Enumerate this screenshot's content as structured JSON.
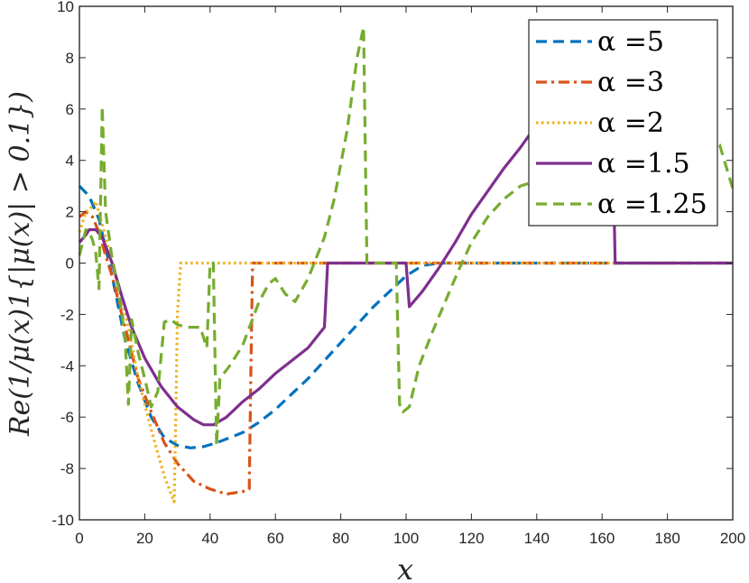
{
  "chart_data": {
    "type": "line",
    "title": "",
    "xlabel": "x",
    "ylabel": "Re(1/μ(x)1{|μ(x)| > 0.1})",
    "xlim": [
      0,
      200
    ],
    "ylim": [
      -10,
      10
    ],
    "xticks": [
      0,
      20,
      40,
      60,
      80,
      100,
      120,
      140,
      160,
      180,
      200
    ],
    "yticks": [
      -10,
      -8,
      -6,
      -4,
      -2,
      0,
      2,
      4,
      6,
      8,
      10
    ],
    "grid": false,
    "legend_position": "top-right",
    "series": [
      {
        "name": "α =5",
        "color": "#0072BD",
        "dash": "dashed",
        "points": [
          [
            0,
            3
          ],
          [
            3,
            2.6
          ],
          [
            6,
            1.7
          ],
          [
            10,
            -0.5
          ],
          [
            14,
            -3
          ],
          [
            18,
            -4.7
          ],
          [
            22,
            -6
          ],
          [
            26,
            -6.8
          ],
          [
            30,
            -7.1
          ],
          [
            34,
            -7.2
          ],
          [
            38,
            -7.15
          ],
          [
            42,
            -7
          ],
          [
            46,
            -6.8
          ],
          [
            50,
            -6.6
          ],
          [
            55,
            -6.2
          ],
          [
            60,
            -5.7
          ],
          [
            65,
            -5.1
          ],
          [
            70,
            -4.5
          ],
          [
            75,
            -3.8
          ],
          [
            80,
            -3.1
          ],
          [
            85,
            -2.4
          ],
          [
            90,
            -1.7
          ],
          [
            95,
            -1.1
          ],
          [
            100,
            -0.5
          ],
          [
            105,
            -0.1
          ],
          [
            110,
            0
          ],
          [
            200,
            0
          ]
        ]
      },
      {
        "name": "α =3",
        "color": "#D95319",
        "dash": "dashdot",
        "points": [
          [
            0,
            1.8
          ],
          [
            2,
            2
          ],
          [
            4,
            1.8
          ],
          [
            6,
            1.2
          ],
          [
            8,
            0.3
          ],
          [
            10,
            -0.5
          ],
          [
            12,
            -1.5
          ],
          [
            15,
            -3
          ],
          [
            18,
            -4.5
          ],
          [
            22,
            -5.8
          ],
          [
            26,
            -7
          ],
          [
            30,
            -7.8
          ],
          [
            35,
            -8.5
          ],
          [
            40,
            -8.8
          ],
          [
            45,
            -9
          ],
          [
            50,
            -8.9
          ],
          [
            52,
            -8.8
          ],
          [
            52.5,
            -4
          ],
          [
            53,
            0
          ],
          [
            200,
            0
          ]
        ]
      },
      {
        "name": "α =2",
        "color": "#EDB120",
        "dash": "dotted",
        "points": [
          [
            0,
            1.2
          ],
          [
            2,
            2
          ],
          [
            4,
            2.2
          ],
          [
            5,
            2.4
          ],
          [
            7,
            1.5
          ],
          [
            9,
            0.5
          ],
          [
            11,
            -0.5
          ],
          [
            13,
            -1.5
          ],
          [
            15,
            -2.5
          ],
          [
            18,
            -4.5
          ],
          [
            22,
            -6.5
          ],
          [
            26,
            -8.3
          ],
          [
            29,
            -9.3
          ],
          [
            29.5,
            -6
          ],
          [
            30,
            -2
          ],
          [
            31,
            0
          ],
          [
            200,
            0
          ]
        ]
      },
      {
        "name": "α =1.5",
        "color": "#7E2F8E",
        "dash": "solid",
        "points": [
          [
            0,
            0.8
          ],
          [
            2,
            1.1
          ],
          [
            3,
            1.3
          ],
          [
            5,
            1.3
          ],
          [
            7,
            1
          ],
          [
            10,
            0
          ],
          [
            13,
            -1.3
          ],
          [
            16,
            -2.5
          ],
          [
            20,
            -3.7
          ],
          [
            25,
            -4.8
          ],
          [
            30,
            -5.6
          ],
          [
            35,
            -6.1
          ],
          [
            38,
            -6.3
          ],
          [
            41,
            -6.3
          ],
          [
            45,
            -6
          ],
          [
            50,
            -5.4
          ],
          [
            55,
            -4.9
          ],
          [
            60,
            -4.3
          ],
          [
            65,
            -3.8
          ],
          [
            70,
            -3.3
          ],
          [
            75,
            -2.5
          ],
          [
            76,
            0
          ],
          [
            100,
            0
          ],
          [
            101,
            -1.7
          ],
          [
            105,
            -1.1
          ],
          [
            110,
            -0.2
          ],
          [
            115,
            0.8
          ],
          [
            120,
            1.9
          ],
          [
            125,
            2.8
          ],
          [
            130,
            3.7
          ],
          [
            135,
            4.5
          ],
          [
            140,
            5.4
          ],
          [
            143,
            5.9
          ],
          [
            160,
            6.3
          ],
          [
            163,
            6.2
          ],
          [
            164,
            0
          ],
          [
            200,
            0
          ]
        ]
      },
      {
        "name": "α =1.25",
        "color": "#77AC30",
        "dash": "dashed",
        "points": [
          [
            0,
            0.3
          ],
          [
            2,
            1.3
          ],
          [
            3,
            1.2
          ],
          [
            4,
            0.9
          ],
          [
            5,
            0.4
          ],
          [
            6,
            -1
          ],
          [
            7,
            6.1
          ],
          [
            8,
            2
          ],
          [
            10,
            0.2
          ],
          [
            12,
            -1
          ],
          [
            14,
            -3
          ],
          [
            15,
            -5.5
          ],
          [
            16,
            -2.2
          ],
          [
            18,
            -3.5
          ],
          [
            20,
            -4.5
          ],
          [
            22,
            -5.6
          ],
          [
            24,
            -5
          ],
          [
            26,
            -2.3
          ],
          [
            28,
            -2.2
          ],
          [
            30,
            -2.4
          ],
          [
            33,
            -2.5
          ],
          [
            37,
            -2.5
          ],
          [
            39,
            -3.3
          ],
          [
            40,
            0
          ],
          [
            41,
            0
          ],
          [
            42,
            -7.1
          ],
          [
            43,
            -4.5
          ],
          [
            46,
            -4
          ],
          [
            50,
            -3.2
          ],
          [
            55,
            -1.5
          ],
          [
            58,
            -0.8
          ],
          [
            60,
            -0.6
          ],
          [
            63,
            -1.2
          ],
          [
            66,
            -1.5
          ],
          [
            70,
            -0.6
          ],
          [
            75,
            1
          ],
          [
            78,
            2.5
          ],
          [
            82,
            5.2
          ],
          [
            85,
            8
          ],
          [
            87,
            9.2
          ],
          [
            88,
            0
          ],
          [
            97,
            0
          ],
          [
            98,
            -5.5
          ],
          [
            99,
            -5.8
          ],
          [
            101,
            -5.6
          ],
          [
            104,
            -4
          ],
          [
            108,
            -2.7
          ],
          [
            112,
            -1.5
          ],
          [
            116,
            -0.3
          ],
          [
            120,
            0.8
          ],
          [
            125,
            1.8
          ],
          [
            130,
            2.5
          ],
          [
            135,
            3
          ],
          [
            140,
            3.2
          ],
          [
            145,
            3.6
          ],
          [
            150,
            4.2
          ],
          [
            155,
            4.8
          ],
          [
            160,
            5.1
          ],
          [
            170,
            5.3
          ],
          [
            180,
            5.2
          ],
          [
            190,
            5
          ],
          [
            196,
            4.6
          ],
          [
            200,
            2.9
          ]
        ]
      }
    ]
  }
}
